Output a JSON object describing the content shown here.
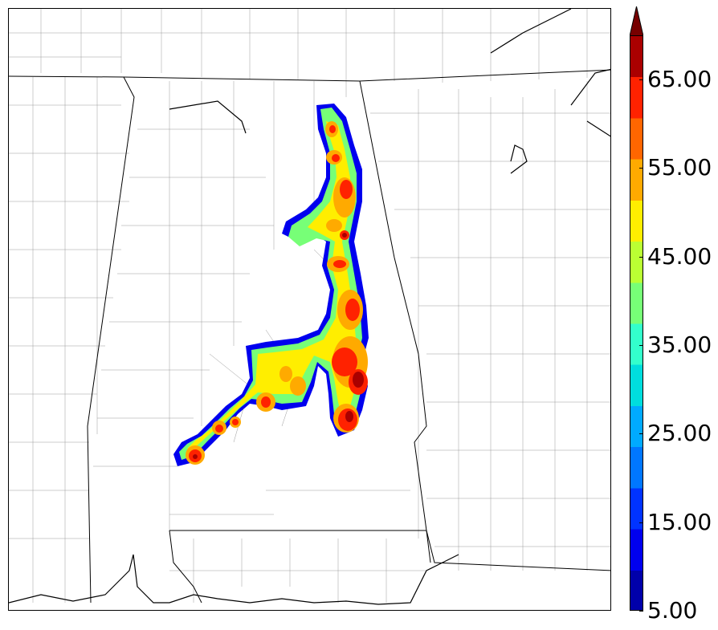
{
  "colorbar": {
    "min": 5,
    "max": 70,
    "extend": "max",
    "levels": [
      5,
      10,
      15,
      20,
      25,
      30,
      35,
      40,
      45,
      50,
      55,
      60,
      65,
      70
    ],
    "colors": [
      "#0000aa",
      "#0000ee",
      "#0033ff",
      "#0077ff",
      "#00aaff",
      "#00dddd",
      "#33ffcc",
      "#77ff77",
      "#bbff33",
      "#ffee00",
      "#ffaa00",
      "#ff6600",
      "#ff2200",
      "#aa0000"
    ],
    "extend_color": "#770000",
    "tick_labels": [
      "5.00",
      "15.00",
      "25.00",
      "35.00",
      "45.00",
      "55.00",
      "65.00"
    ]
  },
  "map": {
    "region": "Alabama and surrounding states",
    "county_borders": true,
    "state_borders": true
  }
}
